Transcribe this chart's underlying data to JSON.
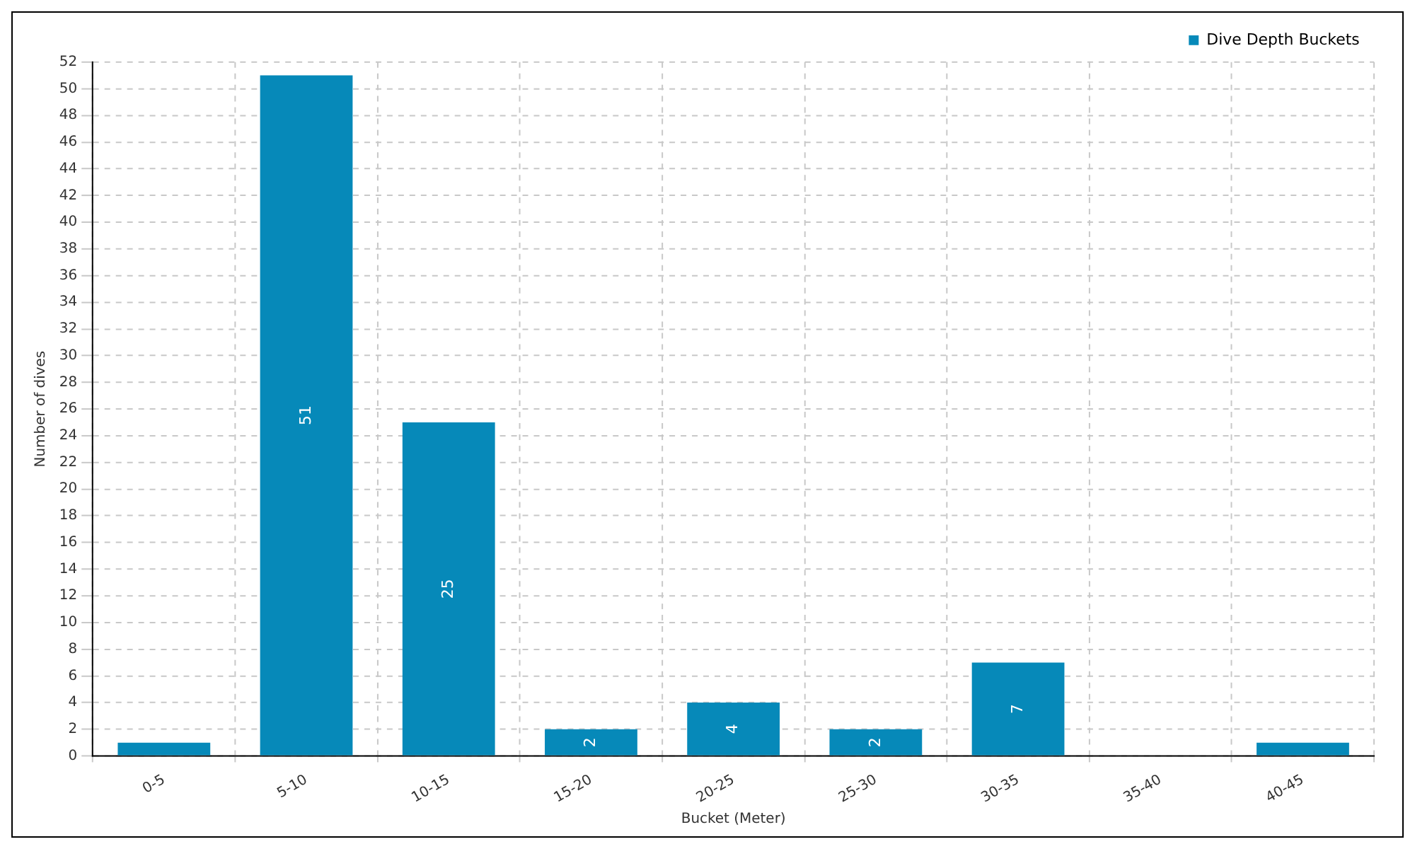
{
  "chart_data": {
    "type": "bar",
    "xlabel": "Bucket (Meter)",
    "ylabel": "Number of dives",
    "categories": [
      "0-5",
      "5-10",
      "10-15",
      "15-20",
      "20-25",
      "25-30",
      "30-35",
      "35-40",
      "40-45"
    ],
    "series": [
      {
        "name": "Dive Depth Buckets",
        "color": "#0689b9",
        "values": [
          1,
          51,
          25,
          2,
          4,
          2,
          7,
          0,
          1
        ],
        "value_labels": [
          null,
          "51",
          "25",
          "2",
          "4",
          "2",
          "7",
          null,
          null
        ]
      }
    ],
    "ylim": [
      0,
      52
    ],
    "yticks": [
      0,
      2,
      4,
      6,
      8,
      10,
      12,
      14,
      16,
      18,
      20,
      22,
      24,
      26,
      28,
      30,
      32,
      34,
      36,
      38,
      40,
      42,
      44,
      46,
      48,
      50,
      52
    ],
    "grid": true,
    "legend": "top right"
  }
}
